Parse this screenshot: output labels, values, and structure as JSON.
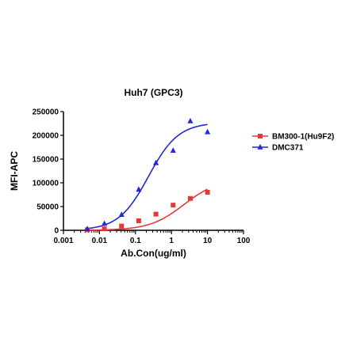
{
  "chart_data": {
    "type": "scatter",
    "title": "Huh7 (GPC3)",
    "xlabel": "Ab.Con(ug/ml)",
    "ylabel": "MFI-APC",
    "x_scale": "log",
    "xlim": [
      0.001,
      100
    ],
    "ylim": [
      0,
      250000
    ],
    "x_ticks": [
      "0.001",
      "0.01",
      "0.1",
      "1",
      "10",
      "100"
    ],
    "y_ticks": [
      "0",
      "50000",
      "100000",
      "150000",
      "200000",
      "250000"
    ],
    "legend_position": "right",
    "grid": false,
    "series": [
      {
        "name": "BM300-1(Hu9F2)",
        "color": "#e8373a",
        "marker": "square",
        "x": [
          0.0046,
          0.0137,
          0.041,
          0.123,
          0.37,
          1.11,
          3.33,
          10
        ],
        "y": [
          1000,
          3000,
          9000,
          20000,
          34000,
          53000,
          67000,
          80000
        ],
        "fit": {
          "bottom": 0,
          "top": 108000,
          "ec50": 2.2,
          "hill": 0.92
        }
      },
      {
        "name": "DMC371",
        "color": "#1f2ad8",
        "marker": "triangle",
        "x": [
          0.0046,
          0.0137,
          0.041,
          0.123,
          0.37,
          1.11,
          3.33,
          10
        ],
        "y": [
          3000,
          14000,
          33000,
          86000,
          142000,
          168000,
          230000,
          207000
        ],
        "fit": {
          "bottom": 0,
          "top": 227000,
          "ec50": 0.23,
          "hill": 1.05
        }
      }
    ]
  }
}
